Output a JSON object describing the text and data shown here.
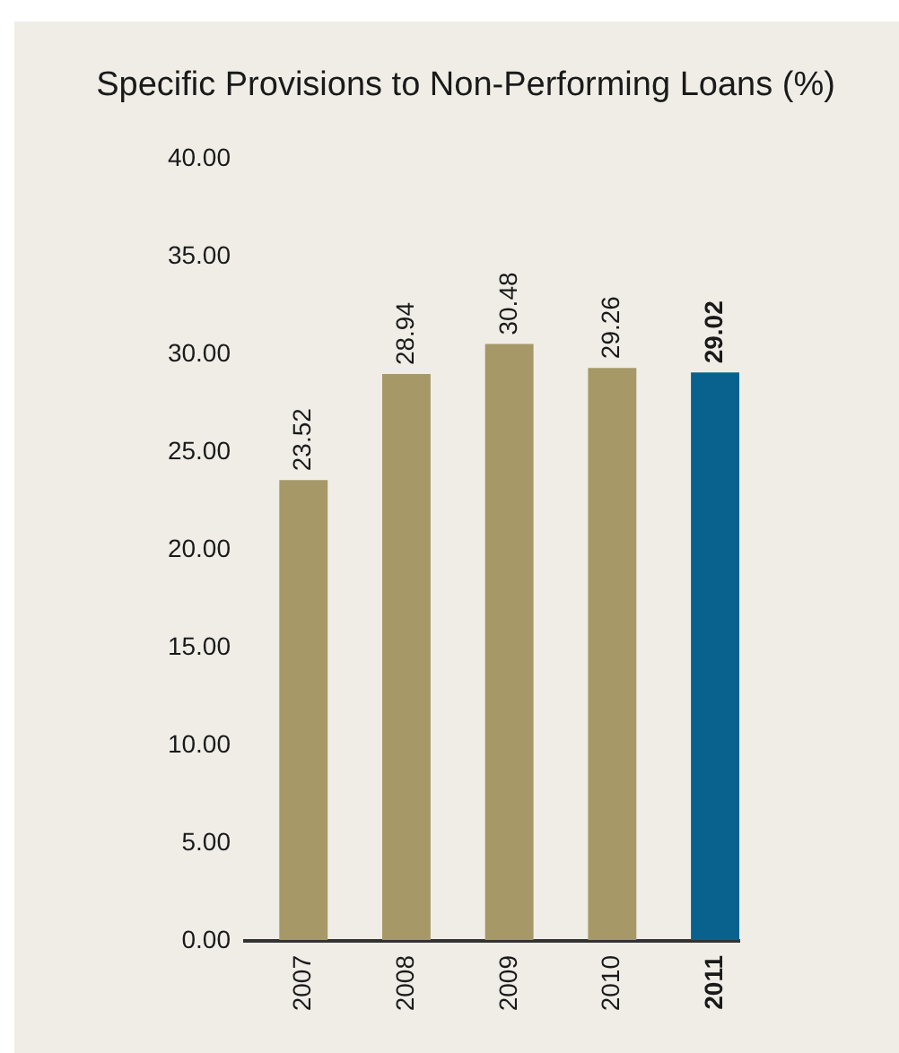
{
  "chart_data": {
    "type": "bar",
    "title": "Specific Provisions to Non-Performing Loans (%)",
    "categories": [
      "2007",
      "2008",
      "2009",
      "2010",
      "2011"
    ],
    "values": [
      23.52,
      28.94,
      30.48,
      29.26,
      29.02
    ],
    "colors": [
      "#a69867",
      "#a69867",
      "#a69867",
      "#a69867",
      "#09628e"
    ],
    "ylim": [
      0,
      40
    ],
    "yticks": [
      {
        "value": 0,
        "label": "0.00"
      },
      {
        "value": 5,
        "label": "5.00"
      },
      {
        "value": 10,
        "label": "10.00"
      },
      {
        "value": 15,
        "label": "15.00"
      },
      {
        "value": 20,
        "label": "20.00"
      },
      {
        "value": 25,
        "label": "25.00"
      },
      {
        "value": 30,
        "label": "30.00"
      },
      {
        "value": 35,
        "label": "35.00"
      },
      {
        "value": 40,
        "label": "40.00"
      }
    ],
    "data_labels": true
  }
}
